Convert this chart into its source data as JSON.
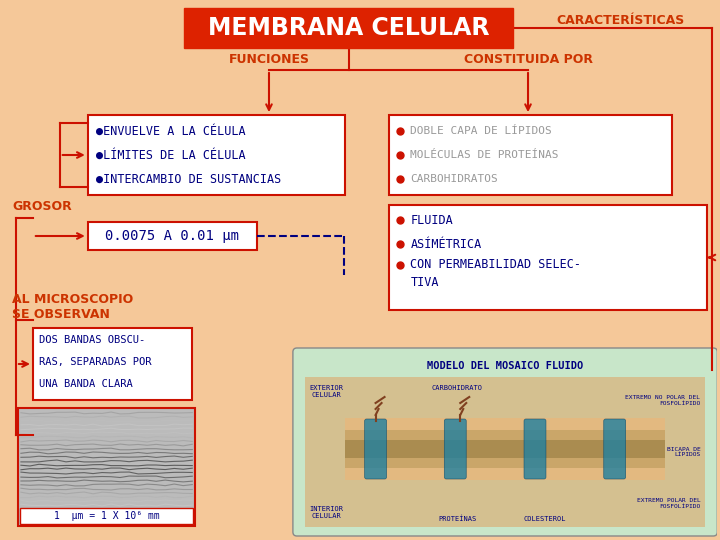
{
  "bg_color": "#F5C899",
  "title": "MEMBRANA CELULAR",
  "title_bg": "#DD2200",
  "title_fg": "#FFFFFF",
  "caracteristicas": "CARACTERÍSTICAS",
  "funciones": "FUNCIONES",
  "constituida": "CONSTITUIDA POR",
  "grosor": "GROSOR",
  "al_microscopio1": "AL MICROSCOPIO",
  "al_microscopio2": "SE OBSERVAN",
  "grosor_val": "0.0075 A 0.01 μm",
  "escala": "1  μm = 1 X 10⁶ mm",
  "modelo_label": "MODELO DEL MOSAICO FLUIDO",
  "red": "#CC1100",
  "navy": "#000080",
  "orange_red": "#CC3300",
  "gray_text": "#999999",
  "box_bg": "#FFFFFF",
  "model_bg": "#C8E6C9",
  "funciones_items": [
    "●ENVUELVE A LA CÉLULA",
    "●LÍMITES DE LA CÉLULA",
    "●INTERCAMBIO DE SUSTANCIAS"
  ],
  "constituida_items": [
    "DOBLE CAPA DE LÍPIDOS",
    "MOLÉCULAS DE PROTEÍNAS",
    "CARBOHIDRATOS"
  ],
  "fluida_items": [
    "FLUIDA",
    "ASÍMÉTRICA",
    "CON PERMEABILIDAD SELEC-"
  ],
  "fluida_item4": "TIVA",
  "dos_bandas": [
    "DOS BANDAS OBSCU-",
    "RAS, SEPARADAS POR",
    "UNA BANDA CLARA"
  ],
  "model_labels_left": [
    "EXTERIOR\nCELULAR",
    "INTERIOR\nCELULAR"
  ],
  "model_labels_top": [
    "CARBOHIDRATO",
    "EXTREMO NO POLAR DEL\nFOSFOLÍPIDO"
  ],
  "model_labels_bot": [
    "PROTEÍNAS",
    "COLESTEROL",
    "EXTREMO POLAR DEL\nFOSFOLÍPIDO"
  ],
  "bicapa_label": "BICAPA DE\nLÍPIDOS"
}
